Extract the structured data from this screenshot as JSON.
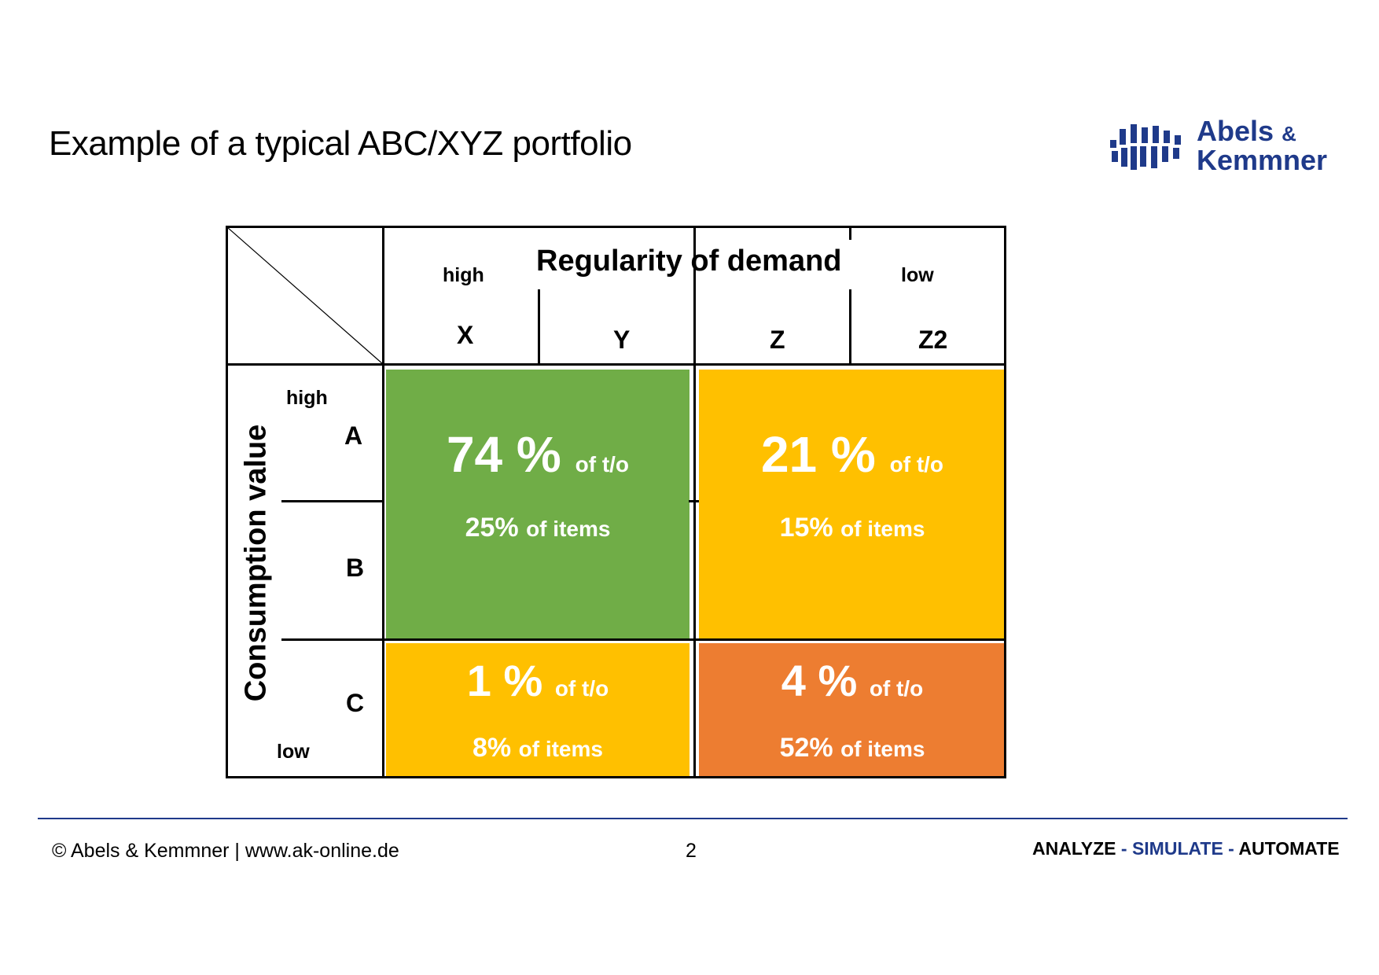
{
  "title": "Example of a typical ABC/XYZ portfolio",
  "logo": {
    "line1": "Abels",
    "amp": "&",
    "line2": "Kemmner",
    "color": "#1f3a8a"
  },
  "matrix": {
    "column_header": "Regularity of demand",
    "col_high": "high",
    "col_low": "low",
    "columns": [
      "X",
      "Y",
      "Z",
      "Z2"
    ],
    "row_header": "Consumption value",
    "row_high": "high",
    "row_low": "low",
    "rows": [
      "A",
      "B",
      "C"
    ],
    "cells": [
      {
        "pct": "74 %",
        "pct_unit": "of t/o",
        "items_pct": "25%",
        "items_unit": "of items",
        "color": "#70ad47"
      },
      {
        "pct": "21 %",
        "pct_unit": "of t/o",
        "items_pct": "15%",
        "items_unit": "of items",
        "color": "#ffc000"
      },
      {
        "pct": "1 %",
        "pct_unit": "of t/o",
        "items_pct": "8%",
        "items_unit": "of items",
        "color": "#ffc000"
      },
      {
        "pct": "4 %",
        "pct_unit": "of t/o",
        "items_pct": "52%",
        "items_unit": "of items",
        "color": "#ed7d31"
      }
    ]
  },
  "footer": {
    "copyright": "© Abels  & Kemmner  | www.ak-online.de",
    "page": "2",
    "tagline_1": "ANALYZE",
    "sep_1": " - ",
    "tagline_2": "SIMULATE",
    "sep_2": " - ",
    "tagline_3": "AUTOMATE"
  }
}
